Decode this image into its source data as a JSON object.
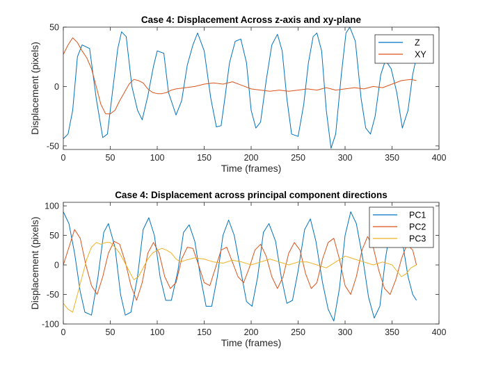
{
  "chart_data": [
    {
      "type": "line",
      "title": "Case 4: Displacement Across z-axis and xy-plane",
      "xlabel": "Time (frames)",
      "ylabel": "Displacement (pixels)",
      "xlim": [
        0,
        400
      ],
      "ylim": [
        -53,
        50
      ],
      "xticks": [
        0,
        50,
        100,
        150,
        200,
        250,
        300,
        350,
        400
      ],
      "yticks": [
        -50,
        0,
        50
      ],
      "grid": false,
      "legend_position": "top-right",
      "series": [
        {
          "name": "Z",
          "color": "#0072BD",
          "x": [
            0,
            5,
            10,
            15,
            20,
            28,
            35,
            42,
            47,
            53,
            58,
            62,
            67,
            73,
            79,
            84,
            90,
            96,
            100,
            107,
            112,
            120,
            126,
            132,
            138,
            143,
            150,
            157,
            163,
            168,
            172,
            177,
            183,
            189,
            195,
            200,
            205,
            210,
            216,
            222,
            228,
            233,
            238,
            243,
            250,
            256,
            261,
            266,
            270,
            275,
            280,
            285,
            290,
            296,
            301,
            305,
            311,
            317,
            322,
            327,
            332,
            338,
            343,
            349,
            355,
            361,
            367,
            372,
            376
          ],
          "y": [
            -44,
            -40,
            -20,
            25,
            35,
            32,
            -10,
            -43,
            -40,
            0,
            32,
            46,
            42,
            0,
            -20,
            -28,
            -8,
            17,
            30,
            28,
            -5,
            -24,
            -12,
            18,
            35,
            45,
            30,
            -10,
            -34,
            -33,
            -10,
            20,
            38,
            40,
            20,
            -20,
            -35,
            -30,
            5,
            35,
            44,
            30,
            -10,
            -40,
            -42,
            -15,
            20,
            42,
            45,
            30,
            -20,
            -52,
            -40,
            10,
            45,
            50,
            38,
            -10,
            -35,
            -40,
            -25,
            10,
            22,
            15,
            -5,
            -35,
            -20,
            10,
            25
          ]
        },
        {
          "name": "XY",
          "color": "#D95319",
          "x": [
            0,
            5,
            10,
            15,
            20,
            25,
            30,
            35,
            40,
            45,
            50,
            55,
            60,
            65,
            70,
            75,
            80,
            85,
            90,
            95,
            100,
            105,
            110,
            115,
            120,
            130,
            140,
            150,
            160,
            170,
            180,
            190,
            200,
            210,
            220,
            230,
            240,
            250,
            260,
            270,
            280,
            290,
            300,
            310,
            320,
            330,
            340,
            350,
            360,
            370,
            376
          ],
          "y": [
            27,
            35,
            41,
            37,
            30,
            24,
            15,
            0,
            -15,
            -23,
            -23,
            -20,
            -12,
            -5,
            2,
            6,
            5,
            3,
            -2,
            -5,
            -6,
            -6,
            -5,
            -3,
            -2,
            -1,
            0,
            2,
            3,
            2,
            4,
            1,
            -2,
            -3,
            -4,
            -3,
            -4,
            -3,
            -2,
            -3,
            -1,
            -3,
            -2,
            -1,
            -2,
            0,
            -1,
            2,
            5,
            6,
            5
          ]
        }
      ]
    },
    {
      "type": "line",
      "title": "Case 4: Displacement across principal component directions",
      "xlabel": "Time (frames)",
      "ylabel": "Displacement (pixels)",
      "xlim": [
        0,
        400
      ],
      "ylim": [
        -100,
        106
      ],
      "xticks": [
        0,
        50,
        100,
        150,
        200,
        250,
        300,
        350,
        400
      ],
      "yticks": [
        -100,
        -50,
        0,
        50,
        100
      ],
      "grid": false,
      "legend_position": "top-right",
      "series": [
        {
          "name": "PC1",
          "color": "#0072BD",
          "x": [
            0,
            6,
            12,
            18,
            23,
            30,
            37,
            43,
            48,
            55,
            61,
            66,
            72,
            79,
            85,
            91,
            97,
            103,
            109,
            115,
            122,
            128,
            134,
            140,
            146,
            152,
            158,
            164,
            170,
            176,
            182,
            189,
            195,
            201,
            207,
            213,
            219,
            226,
            232,
            238,
            244,
            250,
            257,
            263,
            269,
            276,
            282,
            288,
            294,
            300,
            306,
            312,
            319,
            325,
            331,
            337,
            343,
            349,
            355,
            361,
            367,
            372,
            376
          ],
          "y": [
            90,
            70,
            20,
            -45,
            -80,
            -85,
            -20,
            55,
            70,
            30,
            -50,
            -85,
            -80,
            -20,
            60,
            80,
            50,
            -20,
            -60,
            -60,
            -10,
            55,
            68,
            40,
            -20,
            -70,
            -70,
            -20,
            50,
            76,
            50,
            -10,
            -62,
            -70,
            -20,
            55,
            70,
            40,
            -20,
            -65,
            -60,
            -10,
            60,
            78,
            40,
            -30,
            -75,
            -95,
            -40,
            50,
            90,
            70,
            10,
            -55,
            -90,
            -70,
            10,
            70,
            78,
            40,
            -20,
            -50,
            -60
          ]
        },
        {
          "name": "PC2",
          "color": "#D95319",
          "x": [
            0,
            6,
            12,
            18,
            24,
            30,
            36,
            42,
            48,
            54,
            60,
            66,
            72,
            78,
            84,
            90,
            96,
            102,
            108,
            114,
            120,
            126,
            132,
            138,
            144,
            150,
            156,
            162,
            168,
            174,
            180,
            186,
            192,
            198,
            204,
            210,
            216,
            222,
            228,
            234,
            240,
            246,
            252,
            258,
            264,
            270,
            276,
            282,
            288,
            294,
            300,
            306,
            312,
            318,
            324,
            330,
            336,
            342,
            348,
            354,
            360,
            366,
            372,
            376
          ],
          "y": [
            0,
            30,
            60,
            45,
            0,
            -35,
            -50,
            -20,
            20,
            40,
            35,
            5,
            -35,
            -60,
            -30,
            20,
            38,
            20,
            -20,
            -40,
            -30,
            10,
            30,
            28,
            0,
            -30,
            -35,
            -5,
            25,
            30,
            5,
            -20,
            -30,
            -5,
            25,
            35,
            15,
            -20,
            -40,
            -20,
            20,
            38,
            25,
            -15,
            -40,
            -30,
            10,
            38,
            45,
            10,
            -35,
            -50,
            -20,
            25,
            48,
            30,
            -10,
            -40,
            -50,
            -25,
            10,
            35,
            25,
            0
          ]
        },
        {
          "name": "PC3",
          "color": "#EDB120",
          "x": [
            0,
            5,
            10,
            15,
            20,
            25,
            30,
            35,
            40,
            45,
            50,
            55,
            60,
            65,
            70,
            75,
            80,
            85,
            90,
            95,
            100,
            105,
            110,
            115,
            120,
            125,
            130,
            135,
            140,
            150,
            160,
            170,
            180,
            190,
            200,
            210,
            220,
            230,
            240,
            250,
            260,
            270,
            280,
            290,
            300,
            310,
            320,
            330,
            340,
            350,
            355,
            360,
            365,
            370,
            376
          ],
          "y": [
            -65,
            -75,
            -80,
            -50,
            -20,
            10,
            30,
            38,
            35,
            38,
            38,
            30,
            20,
            5,
            -10,
            -25,
            -20,
            -5,
            10,
            20,
            25,
            28,
            25,
            20,
            10,
            5,
            8,
            10,
            12,
            10,
            5,
            3,
            8,
            5,
            0,
            5,
            10,
            5,
            0,
            5,
            5,
            0,
            -5,
            5,
            15,
            10,
            5,
            0,
            5,
            0,
            -10,
            -20,
            -15,
            -5,
            0
          ]
        }
      ]
    }
  ]
}
